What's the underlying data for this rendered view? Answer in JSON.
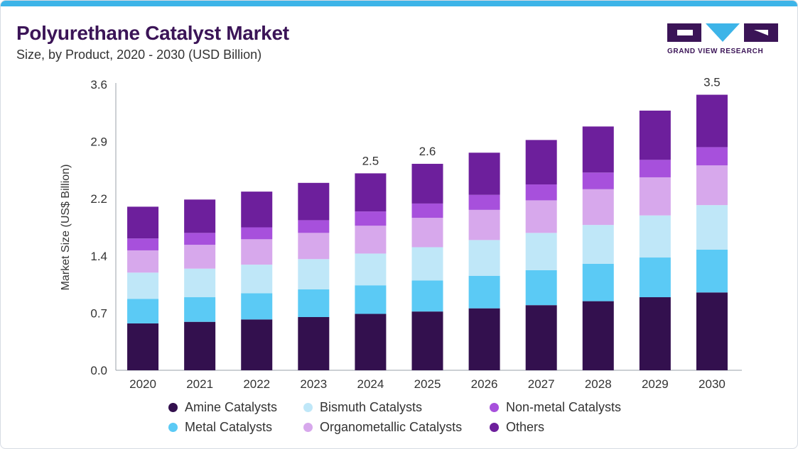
{
  "header": {
    "title": "Polyurethane Catalyst Market",
    "subtitle": "Size, by Product, 2020 - 2030 (USD Billion)"
  },
  "logo": {
    "text": "GRAND VIEW RESEARCH",
    "icon": "grand-view-research-logo",
    "colors": {
      "primary": "#3b1457",
      "accent": "#3db4e8"
    }
  },
  "chart_data": {
    "type": "bar",
    "stacked": true,
    "title": "Polyurethane Catalyst Market",
    "subtitle": "Size, by Product, 2020 - 2030 (USD Billion)",
    "xlabel": "",
    "ylabel": "Market Size (US$ Billion)",
    "ylim": [
      0,
      3.6
    ],
    "yticks": [
      "0.0",
      "0.7",
      "1.4",
      "2.2",
      "2.9",
      "3.6"
    ],
    "grid": false,
    "legend_placement": "bottom",
    "categories": [
      "2020",
      "2021",
      "2022",
      "2023",
      "2024",
      "2025",
      "2026",
      "2027",
      "2028",
      "2029",
      "2030"
    ],
    "series": [
      {
        "name": "Amine Catalysts",
        "color": "#33104e",
        "values": [
          0.59,
          0.61,
          0.64,
          0.67,
          0.71,
          0.74,
          0.78,
          0.82,
          0.87,
          0.92,
          0.98
        ]
      },
      {
        "name": "Metal Catalysts",
        "color": "#5bcaf5",
        "values": [
          0.31,
          0.31,
          0.33,
          0.35,
          0.36,
          0.39,
          0.41,
          0.44,
          0.47,
          0.5,
          0.54
        ]
      },
      {
        "name": "Bismuth Catalysts",
        "color": "#bfe7f8",
        "values": [
          0.33,
          0.36,
          0.36,
          0.38,
          0.4,
          0.42,
          0.45,
          0.47,
          0.49,
          0.53,
          0.56
        ]
      },
      {
        "name": "Organometallic Catalysts",
        "color": "#d7a8ec",
        "values": [
          0.28,
          0.3,
          0.32,
          0.33,
          0.35,
          0.37,
          0.38,
          0.41,
          0.45,
          0.48,
          0.5
        ]
      },
      {
        "name": "Non-metal Catalysts",
        "color": "#a750dc",
        "values": [
          0.15,
          0.15,
          0.15,
          0.16,
          0.18,
          0.18,
          0.19,
          0.2,
          0.21,
          0.22,
          0.23
        ]
      },
      {
        "name": "Others",
        "color": "#6d1f9c",
        "values": [
          0.4,
          0.42,
          0.45,
          0.47,
          0.48,
          0.5,
          0.53,
          0.56,
          0.58,
          0.62,
          0.66
        ]
      }
    ],
    "annotations": [
      {
        "category": "2024",
        "label": "2.5"
      },
      {
        "category": "2025",
        "label": "2.6"
      },
      {
        "category": "2030",
        "label": "3.5"
      }
    ]
  }
}
